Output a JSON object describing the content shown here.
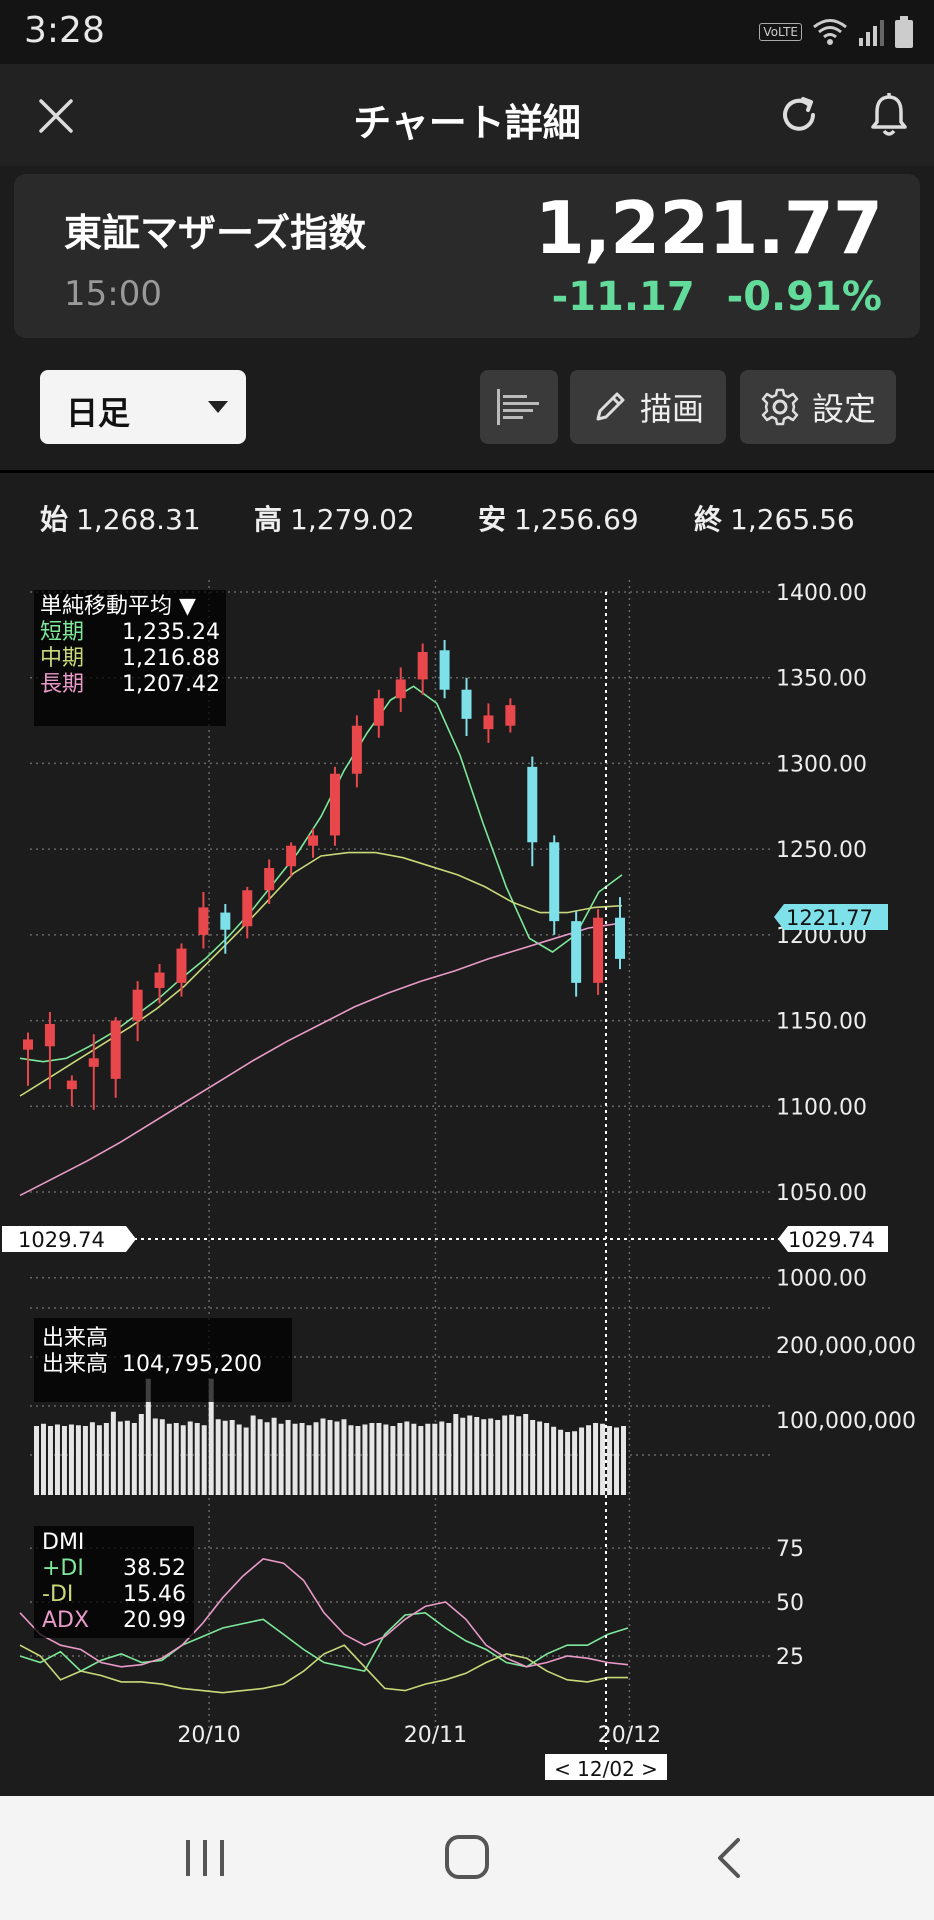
{
  "status_bar": {
    "time": "3:28",
    "volte": "VoLTE"
  },
  "header": {
    "title": "チャート詳細"
  },
  "quote": {
    "name": "東証マザーズ指数",
    "time": "15:00",
    "price": "1,221.77",
    "change": "-11.17",
    "change_pct": "-0.91%",
    "change_color": "#63dc9b"
  },
  "toolbar": {
    "period": "日足",
    "draw_label": "描画",
    "settings_label": "設定"
  },
  "ohlc": {
    "open_label": "始",
    "open": "1,268.31",
    "high_label": "高",
    "high": "1,279.02",
    "low_label": "安",
    "low": "1,256.69",
    "close_label": "終",
    "close": "1,265.56"
  },
  "ma_legend": {
    "title": "単純移動平均 ▼",
    "short_label": "短期",
    "short": "1,235.24",
    "mid_label": "中期",
    "mid": "1,216.88",
    "long_label": "長期",
    "long": "1,207.42"
  },
  "volume_legend": {
    "title": "出来高",
    "label": "出来高",
    "value": "104,795,200"
  },
  "dmi_legend": {
    "title": "DMI",
    "pdi_label": "+DI",
    "pdi": "38.52",
    "mdi_label": "-DI",
    "mdi": "15.46",
    "adx_label": "ADX",
    "adx": "20.99"
  },
  "crosshair": {
    "price_left": "1029.74",
    "price_right": "1029.74",
    "date": "< 12/02 >"
  },
  "current_price_tag": "1221.77",
  "chart_data": [
    {
      "type": "candlestick",
      "y_ticks": [
        1400,
        1350,
        1300,
        1250,
        1200,
        1150,
        1100,
        1050,
        1000
      ],
      "y_tick_labels": [
        "1400.00",
        "1350.00",
        "1300.00",
        "1250.00",
        "1200.00",
        "1150.00",
        "1100.00",
        "1050.00",
        "1000.00"
      ],
      "ylim": [
        987,
        1407
      ],
      "x_ticks": [
        "20/10",
        "20/11",
        "20/12"
      ],
      "x_tick_index": [
        5.6,
        12.6,
        18.6
      ],
      "candles": [
        {
          "o": 1133,
          "h": 1143,
          "l": 1112,
          "c": 1139
        },
        {
          "o": 1135,
          "h": 1155,
          "l": 1110,
          "c": 1148
        },
        {
          "o": 1110,
          "h": 1118,
          "l": 1100,
          "c": 1115
        },
        {
          "o": 1123,
          "h": 1142,
          "l": 1098,
          "c": 1128
        },
        {
          "o": 1116,
          "h": 1152,
          "l": 1105,
          "c": 1150
        },
        {
          "o": 1150,
          "h": 1173,
          "l": 1138,
          "c": 1168
        },
        {
          "o": 1169,
          "h": 1183,
          "l": 1160,
          "c": 1178
        },
        {
          "o": 1172,
          "h": 1195,
          "l": 1164,
          "c": 1192
        },
        {
          "o": 1200,
          "h": 1225,
          "l": 1192,
          "c": 1216
        },
        {
          "o": 1213,
          "h": 1218,
          "l": 1189,
          "c": 1203
        },
        {
          "o": 1205,
          "h": 1228,
          "l": 1198,
          "c": 1226
        },
        {
          "o": 1226,
          "h": 1244,
          "l": 1218,
          "c": 1239
        },
        {
          "o": 1240,
          "h": 1254,
          "l": 1234,
          "c": 1252
        },
        {
          "o": 1252,
          "h": 1262,
          "l": 1245,
          "c": 1258
        },
        {
          "o": 1258,
          "h": 1298,
          "l": 1252,
          "c": 1294
        },
        {
          "o": 1294,
          "h": 1328,
          "l": 1286,
          "c": 1322
        },
        {
          "o": 1322,
          "h": 1343,
          "l": 1315,
          "c": 1338
        },
        {
          "o": 1338,
          "h": 1356,
          "l": 1330,
          "c": 1349
        },
        {
          "o": 1349,
          "h": 1370,
          "l": 1340,
          "c": 1365
        },
        {
          "o": 1366,
          "h": 1372,
          "l": 1338,
          "c": 1343
        },
        {
          "o": 1343,
          "h": 1350,
          "l": 1316,
          "c": 1326
        },
        {
          "o": 1320,
          "h": 1335,
          "l": 1312,
          "c": 1328
        },
        {
          "o": 1322,
          "h": 1338,
          "l": 1318,
          "c": 1334
        },
        {
          "o": 1298,
          "h": 1304,
          "l": 1240,
          "c": 1254
        },
        {
          "o": 1254,
          "h": 1258,
          "l": 1200,
          "c": 1208
        },
        {
          "o": 1208,
          "h": 1214,
          "l": 1164,
          "c": 1172
        },
        {
          "o": 1172,
          "h": 1215,
          "l": 1165,
          "c": 1210
        },
        {
          "o": 1210,
          "h": 1222,
          "l": 1180,
          "c": 1186
        }
      ],
      "ma_short": [
        1128,
        1126,
        1128,
        1135,
        1143,
        1153,
        1163,
        1175,
        1186,
        1199,
        1214,
        1231,
        1248,
        1269,
        1296,
        1318,
        1337,
        1345,
        1335,
        1305,
        1265,
        1228,
        1198,
        1190,
        1200,
        1225,
        1235
      ],
      "ma_mid": [
        1106,
        1116,
        1126,
        1136,
        1146,
        1157,
        1170,
        1186,
        1202,
        1219,
        1236,
        1246,
        1248,
        1248,
        1245,
        1240,
        1235,
        1228,
        1219,
        1213,
        1213,
        1216,
        1217
      ],
      "ma_long": [
        1048,
        1058,
        1068,
        1079,
        1091,
        1103,
        1115,
        1127,
        1138,
        1148,
        1158,
        1166,
        1173,
        1179,
        1186,
        1192,
        1198,
        1204,
        1207
      ]
    },
    {
      "type": "bar",
      "title": "出来高",
      "y_ticks": [
        200000000,
        100000000
      ],
      "y_tick_labels": [
        "200,000,000",
        "100,000,000"
      ],
      "ylim": [
        0,
        260000000
      ],
      "values": [
        92,
        95,
        92,
        94,
        92,
        94,
        93,
        92,
        97,
        93,
        96,
        111,
        98,
        99,
        96,
        108,
        155,
        102,
        101,
        95,
        96,
        93,
        98,
        96,
        93,
        155,
        101,
        99,
        100,
        94,
        90,
        106,
        101,
        97,
        103,
        95,
        100,
        95,
        96,
        93,
        97,
        102,
        100,
        98,
        101,
        93,
        92,
        94,
        96,
        96,
        94,
        92,
        96,
        98,
        95,
        92,
        95,
        95,
        98,
        96,
        108,
        103,
        106,
        104,
        101,
        102,
        100,
        106,
        107,
        105,
        108,
        100,
        98,
        96,
        91,
        87,
        84,
        85,
        90,
        93,
        96,
        95,
        92,
        90,
        92
      ],
      "unit_multiplier": 1000000
    },
    {
      "type": "line",
      "title": "DMI",
      "y_ticks": [
        75,
        50,
        25
      ],
      "ylim": [
        0,
        88
      ],
      "series": [
        {
          "name": "+DI",
          "values": [
            25,
            22,
            27,
            18,
            23,
            26,
            22,
            23,
            30,
            34,
            38,
            40,
            42,
            35,
            28,
            22,
            20,
            18,
            35,
            44,
            45,
            38,
            32,
            28,
            22,
            20,
            26,
            30,
            30,
            35,
            38
          ]
        },
        {
          "name": "-DI",
          "values": [
            30,
            25,
            14,
            18,
            16,
            13,
            13,
            12,
            10,
            9,
            8,
            9,
            10,
            12,
            18,
            26,
            30,
            20,
            10,
            9,
            12,
            14,
            17,
            22,
            26,
            24,
            18,
            14,
            13,
            15,
            15
          ]
        },
        {
          "name": "ADX",
          "values": [
            45,
            35,
            30,
            28,
            22,
            20,
            21,
            24,
            30,
            40,
            52,
            62,
            70,
            68,
            60,
            45,
            35,
            30,
            34,
            42,
            48,
            50,
            42,
            30,
            24,
            20,
            22,
            25,
            24,
            22,
            21
          ]
        }
      ]
    }
  ]
}
